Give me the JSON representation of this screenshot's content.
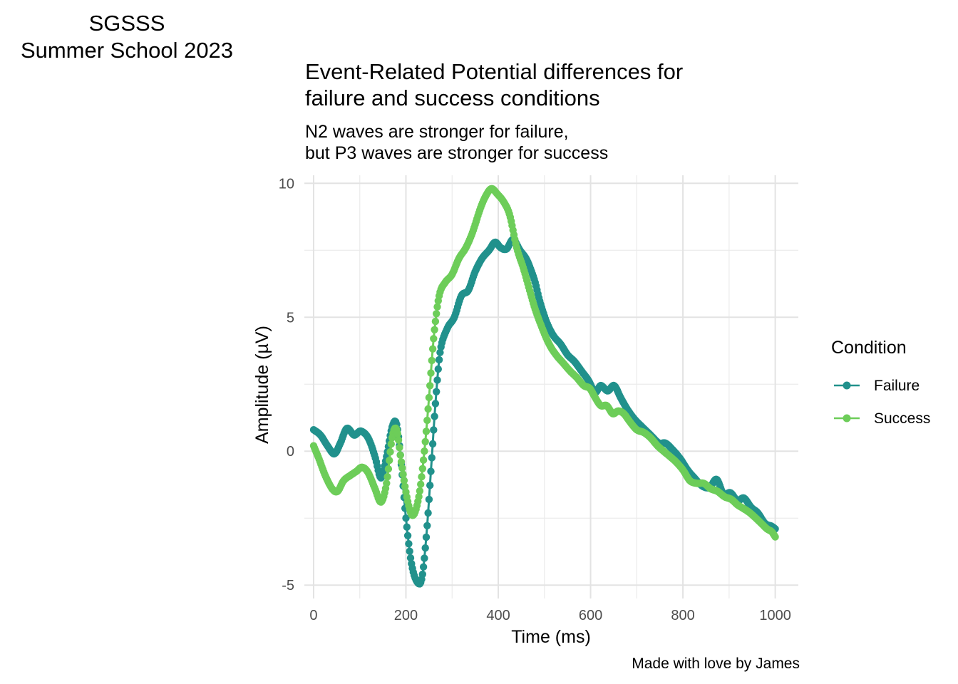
{
  "tag": [
    "SGSSS",
    "Summer School 2023"
  ],
  "chart_data": {
    "type": "line",
    "title": [
      "Event-Related Potential differences for",
      "failure and success conditions"
    ],
    "subtitle": [
      "N2 waves are stronger for failure,",
      "but P3 waves are stronger for success"
    ],
    "caption": "Made with love by James",
    "xlabel": "Time (ms)",
    "ylabel": "Amplitude (µV)",
    "xlim": [
      -20,
      1050
    ],
    "ylim": [
      -5.5,
      10.3
    ],
    "x_ticks": [
      0,
      200,
      400,
      600,
      800,
      1000
    ],
    "y_ticks": [
      -5,
      0,
      5,
      10
    ],
    "grid": true,
    "legend_position": "right",
    "legend_title": "Condition",
    "series": [
      {
        "name": "Failure",
        "color": "#21918c",
        "points": [
          [
            0,
            0.8
          ],
          [
            15,
            0.6
          ],
          [
            30,
            0.2
          ],
          [
            45,
            -0.1
          ],
          [
            58,
            0.3
          ],
          [
            72,
            0.85
          ],
          [
            88,
            0.6
          ],
          [
            102,
            0.75
          ],
          [
            118,
            0.5
          ],
          [
            133,
            -0.2
          ],
          [
            146,
            -1.0
          ],
          [
            158,
            -0.2
          ],
          [
            170,
            0.9
          ],
          [
            180,
            1.0
          ],
          [
            190,
            -0.5
          ],
          [
            200,
            -2.5
          ],
          [
            212,
            -4.2
          ],
          [
            225,
            -4.9
          ],
          [
            235,
            -4.7
          ],
          [
            245,
            -3.0
          ],
          [
            255,
            -0.5
          ],
          [
            265,
            2.0
          ],
          [
            275,
            3.8
          ],
          [
            290,
            4.6
          ],
          [
            305,
            5.0
          ],
          [
            320,
            5.8
          ],
          [
            335,
            6.0
          ],
          [
            350,
            6.7
          ],
          [
            365,
            7.2
          ],
          [
            380,
            7.5
          ],
          [
            393,
            7.8
          ],
          [
            405,
            7.6
          ],
          [
            418,
            7.55
          ],
          [
            432,
            7.9
          ],
          [
            447,
            7.5
          ],
          [
            460,
            7.2
          ],
          [
            470,
            6.8
          ],
          [
            480,
            6.3
          ],
          [
            490,
            5.6
          ],
          [
            505,
            4.8
          ],
          [
            520,
            4.3
          ],
          [
            535,
            4.0
          ],
          [
            550,
            3.6
          ],
          [
            565,
            3.35
          ],
          [
            580,
            3.0
          ],
          [
            595,
            2.65
          ],
          [
            610,
            2.2
          ],
          [
            622,
            2.45
          ],
          [
            637,
            2.25
          ],
          [
            651,
            2.45
          ],
          [
            665,
            2.0
          ],
          [
            680,
            1.55
          ],
          [
            695,
            1.2
          ],
          [
            712,
            0.9
          ],
          [
            730,
            0.6
          ],
          [
            748,
            0.3
          ],
          [
            762,
            0.3
          ],
          [
            778,
            0.05
          ],
          [
            795,
            -0.3
          ],
          [
            810,
            -0.7
          ],
          [
            825,
            -1.0
          ],
          [
            842,
            -1.3
          ],
          [
            858,
            -1.35
          ],
          [
            873,
            -1.05
          ],
          [
            888,
            -1.6
          ],
          [
            903,
            -1.55
          ],
          [
            918,
            -1.85
          ],
          [
            932,
            -1.75
          ],
          [
            948,
            -2.1
          ],
          [
            962,
            -2.3
          ],
          [
            978,
            -2.7
          ],
          [
            992,
            -2.8
          ],
          [
            1000,
            -2.9
          ]
        ]
      },
      {
        "name": "Success",
        "color": "#6dcd59",
        "points": [
          [
            0,
            0.2
          ],
          [
            12,
            -0.3
          ],
          [
            25,
            -0.9
          ],
          [
            40,
            -1.4
          ],
          [
            52,
            -1.5
          ],
          [
            65,
            -1.1
          ],
          [
            80,
            -0.9
          ],
          [
            93,
            -0.75
          ],
          [
            105,
            -0.6
          ],
          [
            118,
            -0.8
          ],
          [
            133,
            -1.4
          ],
          [
            146,
            -1.9
          ],
          [
            158,
            -1.2
          ],
          [
            170,
            0.5
          ],
          [
            180,
            0.8
          ],
          [
            190,
            -0.4
          ],
          [
            203,
            -1.8
          ],
          [
            215,
            -2.4
          ],
          [
            228,
            -1.7
          ],
          [
            240,
            0.0
          ],
          [
            250,
            2.0
          ],
          [
            260,
            4.2
          ],
          [
            272,
            5.8
          ],
          [
            285,
            6.3
          ],
          [
            300,
            6.6
          ],
          [
            315,
            7.2
          ],
          [
            330,
            7.6
          ],
          [
            345,
            8.2
          ],
          [
            360,
            9.0
          ],
          [
            372,
            9.5
          ],
          [
            385,
            9.8
          ],
          [
            398,
            9.6
          ],
          [
            412,
            9.3
          ],
          [
            425,
            8.8
          ],
          [
            440,
            7.6
          ],
          [
            455,
            6.8
          ],
          [
            468,
            6.0
          ],
          [
            480,
            5.3
          ],
          [
            495,
            4.6
          ],
          [
            510,
            4.0
          ],
          [
            525,
            3.6
          ],
          [
            540,
            3.3
          ],
          [
            555,
            3.0
          ],
          [
            570,
            2.75
          ],
          [
            585,
            2.45
          ],
          [
            598,
            2.35
          ],
          [
            610,
            2.0
          ],
          [
            622,
            1.7
          ],
          [
            635,
            1.7
          ],
          [
            648,
            1.4
          ],
          [
            660,
            1.5
          ],
          [
            672,
            1.4
          ],
          [
            685,
            1.1
          ],
          [
            700,
            0.8
          ],
          [
            715,
            0.7
          ],
          [
            730,
            0.5
          ],
          [
            745,
            0.2
          ],
          [
            758,
            0.0
          ],
          [
            772,
            -0.2
          ],
          [
            785,
            -0.4
          ],
          [
            800,
            -0.7
          ],
          [
            815,
            -1.1
          ],
          [
            830,
            -1.2
          ],
          [
            845,
            -1.2
          ],
          [
            860,
            -1.4
          ],
          [
            875,
            -1.5
          ],
          [
            890,
            -1.7
          ],
          [
            905,
            -1.8
          ],
          [
            918,
            -2.0
          ],
          [
            932,
            -2.15
          ],
          [
            945,
            -2.3
          ],
          [
            958,
            -2.5
          ],
          [
            970,
            -2.7
          ],
          [
            982,
            -2.9
          ],
          [
            992,
            -3.0
          ],
          [
            1000,
            -3.2
          ]
        ]
      }
    ]
  }
}
